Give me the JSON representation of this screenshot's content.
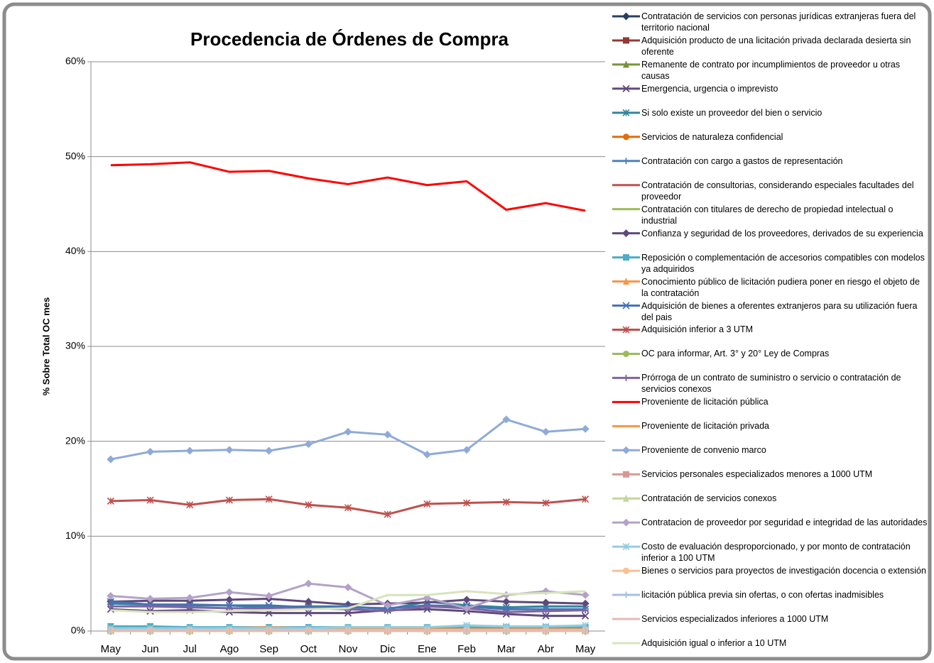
{
  "chart_data": {
    "type": "line",
    "title": "Procedencia de Órdenes de Compra",
    "y_label": "% Sobre  Total OC mes",
    "categories": [
      "May",
      "Jun",
      "Jul",
      "Ago",
      "Sep",
      "Oct",
      "Nov",
      "Dic",
      "Ene",
      "Feb",
      "Mar",
      "Abr",
      "May"
    ],
    "ylim": [
      0,
      60
    ],
    "yticks": [
      {
        "value": 0,
        "label": "0%"
      },
      {
        "value": 10,
        "label": "10%"
      },
      {
        "value": 20,
        "label": "20%"
      },
      {
        "value": 30,
        "label": "30%"
      },
      {
        "value": 40,
        "label": "40%"
      },
      {
        "value": 50,
        "label": "50%"
      },
      {
        "value": 60,
        "label": "60%"
      }
    ],
    "grid": true,
    "legend": "right",
    "series": [
      {
        "name": "Contratación de servicios con personas jurídicas extranjeras fuera del territorio nacional",
        "color": "#254061",
        "marker": "diamond",
        "values": [
          0,
          0,
          0,
          0,
          0,
          0,
          0,
          0,
          0,
          0,
          0,
          0,
          0
        ]
      },
      {
        "name": "Adquisición producto de una licitación privada declarada desierta sin oferente",
        "color": "#953735",
        "marker": "square",
        "values": [
          0,
          0,
          0,
          0,
          0,
          0,
          0,
          0,
          0,
          0,
          0,
          0,
          0
        ]
      },
      {
        "name": "Remanente de contrato por incumplimientos de proveedor u otras causas",
        "color": "#77933c",
        "marker": "triangle",
        "values": [
          0,
          0,
          0,
          0,
          0,
          0,
          0,
          0,
          0,
          0,
          0,
          0,
          0
        ]
      },
      {
        "name": "Emergencia, urgencia o imprevisto",
        "color": "#604a7b",
        "marker": "x",
        "values": [
          2.3,
          2.1,
          2.2,
          2.0,
          1.9,
          1.9,
          1.9,
          2.2,
          2.3,
          2.1,
          1.8,
          1.6,
          1.6
        ]
      },
      {
        "name": "Si solo existe un proveedor del bien o servicio",
        "color": "#31859c",
        "marker": "star",
        "values": [
          2.9,
          2.8,
          2.7,
          2.7,
          2.5,
          2.6,
          2.6,
          2.3,
          3.1,
          2.7,
          2.5,
          2.6,
          2.6
        ]
      },
      {
        "name": "Servicios de naturaleza confidencial",
        "color": "#e46c0a",
        "marker": "circle",
        "values": [
          0,
          0,
          0,
          0,
          0,
          0,
          0,
          0,
          0,
          0,
          0,
          0,
          0
        ]
      },
      {
        "name": "Contratación con cargo a gastos de representación",
        "color": "#4f81bd",
        "marker": "plus",
        "values": [
          0,
          0,
          0,
          0,
          0,
          0,
          0,
          0,
          0,
          0,
          0,
          0,
          0
        ]
      },
      {
        "name": "Contratación de consultorias, considerando especiales facultades del proveedor",
        "color": "#c0504d",
        "marker": "none",
        "values": [
          0,
          0,
          0,
          0,
          0,
          0,
          0,
          0,
          0,
          0,
          0,
          0,
          0
        ]
      },
      {
        "name": "Contratación con titulares de derecho de propiedad intelectual o industrial",
        "color": "#9bbb59",
        "marker": "none",
        "values": [
          0,
          0,
          0,
          0,
          0,
          0,
          0,
          0,
          0,
          0,
          0,
          0,
          0
        ]
      },
      {
        "name": "Confianza y seguridad de los proveedores, derivados de su experiencia",
        "color": "#5f497a",
        "marker": "diamond",
        "values": [
          3.1,
          3.2,
          3.2,
          3.3,
          3.4,
          3.1,
          2.8,
          2.9,
          3.0,
          3.3,
          3.1,
          3.0,
          2.9
        ]
      },
      {
        "name": "Reposición o complementación de accesorios compatibles con modelos ya adquiridos",
        "color": "#4bacc6",
        "marker": "square",
        "values": [
          0.5,
          0.5,
          0.4,
          0.4,
          0.4,
          0.4,
          0.4,
          0.4,
          0.4,
          0.4,
          0.4,
          0.4,
          0.4
        ]
      },
      {
        "name": "Conocimiento público de licitación pudiera poner en riesgo el objeto de la contratación",
        "color": "#f79646",
        "marker": "triangle",
        "values": [
          0,
          0,
          0,
          0,
          0,
          0,
          0,
          0,
          0,
          0,
          0,
          0,
          0
        ]
      },
      {
        "name": "Adquisición de bienes a oferentes extranjeros para su utilización fuera del pais",
        "color": "#4673b4",
        "marker": "x",
        "values": [
          3.1,
          2.8,
          2.8,
          2.7,
          2.7,
          2.5,
          2.5,
          2.4,
          2.7,
          2.6,
          2.3,
          2.3,
          2.3
        ]
      },
      {
        "name": "Adquisición inferior a 3 UTM",
        "color": "#c0504d",
        "marker": "star",
        "values": [
          13.7,
          13.8,
          13.3,
          13.8,
          13.9,
          13.3,
          13.0,
          12.3,
          13.4,
          13.5,
          13.6,
          13.5,
          13.9
        ]
      },
      {
        "name": "OC para informar, Art. 3° y 20° Ley de Compras",
        "color": "#9bbb59",
        "marker": "circle",
        "values": [
          0,
          0,
          0,
          0,
          0,
          0,
          0,
          0,
          0,
          0,
          0,
          0,
          0
        ]
      },
      {
        "name": "Prórroga de un contrato de suministro o servicio o contratación de servicios conexos",
        "color": "#8064a2",
        "marker": "plus",
        "values": [
          2.6,
          2.6,
          2.5,
          2.4,
          2.4,
          2.4,
          2.3,
          2.1,
          2.6,
          2.4,
          2.0,
          2.1,
          2.2
        ]
      },
      {
        "name": "Proveniente de licitación pública",
        "color": "#ff0000",
        "marker": "none",
        "values": [
          49.1,
          49.2,
          49.4,
          48.4,
          48.5,
          47.7,
          47.1,
          47.8,
          47.0,
          47.4,
          44.4,
          45.1,
          44.3
        ]
      },
      {
        "name": "Proveniente de licitación privada",
        "color": "#f79646",
        "marker": "none",
        "values": [
          0.3,
          0.3,
          0.3,
          0.3,
          0.4,
          0.3,
          0.2,
          0.2,
          0.2,
          0.2,
          0.2,
          0.2,
          0.2
        ]
      },
      {
        "name": "Proveniente de convenio marco",
        "color": "#8eaad8",
        "marker": "diamond",
        "values": [
          18.1,
          18.9,
          19.0,
          19.1,
          19.0,
          19.7,
          21.0,
          20.7,
          18.6,
          19.1,
          22.3,
          21.0,
          21.3
        ]
      },
      {
        "name": "Servicios personales especializados menores a 1000 UTM",
        "color": "#d99694",
        "marker": "square",
        "values": [
          0.1,
          0.1,
          0.1,
          0.1,
          0.1,
          0.1,
          0.1,
          0.1,
          0.1,
          0.1,
          0.1,
          0.1,
          0.1
        ]
      },
      {
        "name": "Contratación de servicios conexos",
        "color": "#c3d69b",
        "marker": "triangle",
        "values": [
          0,
          0,
          0,
          0,
          0,
          0,
          0,
          0,
          0,
          0,
          0,
          0,
          0
        ]
      },
      {
        "name": "Contratacion de proveedor por seguridad e integridad de las autoridades",
        "color": "#b3a2c7",
        "marker": "diamond",
        "values": [
          3.7,
          3.4,
          3.5,
          4.1,
          3.7,
          5.0,
          4.6,
          2.7,
          3.5,
          2.4,
          3.8,
          4.2,
          3.8
        ]
      },
      {
        "name": "Costo de evaluación desproporcionado, y por monto de contratación inferior a 100 UTM",
        "color": "#93cddd",
        "marker": "star",
        "values": [
          0.3,
          0.3,
          0.3,
          0.3,
          0.3,
          0.3,
          0.4,
          0.4,
          0.4,
          0.6,
          0.5,
          0.5,
          0.6
        ]
      },
      {
        "name": "Bienes o servicios para proyectos de investigación docencia o extensión",
        "color": "#fac090",
        "marker": "circle",
        "values": [
          0.1,
          0.1,
          0.1,
          0.1,
          0.1,
          0.1,
          0.1,
          0.1,
          0.1,
          0.1,
          0.1,
          0.1,
          0.1
        ]
      },
      {
        "name": "licitación pública previa sin ofertas, o con ofertas inadmisibles",
        "color": "#a7bfde",
        "marker": "plus",
        "values": [
          0.1,
          0.1,
          0.1,
          0.1,
          0.1,
          0.1,
          0.1,
          0.1,
          0.1,
          0.1,
          0.1,
          0.1,
          0.1
        ]
      },
      {
        "name": "Servicios especializados inferiores a 1000 UTM",
        "color": "#e6b9b8",
        "marker": "none",
        "values": [
          0.1,
          0.1,
          0.1,
          0.1,
          0.1,
          0.1,
          0.1,
          0.1,
          0.1,
          0.1,
          0.1,
          0.1,
          0.1
        ]
      },
      {
        "name": "Adquisición igual o inferior a 10 UTM",
        "color": "#d7e4bd",
        "marker": "none",
        "values": [
          2.2,
          2.0,
          2.0,
          2.1,
          2.2,
          2.3,
          2.4,
          3.8,
          3.8,
          4.2,
          3.9,
          4.0,
          4.2
        ]
      }
    ]
  }
}
